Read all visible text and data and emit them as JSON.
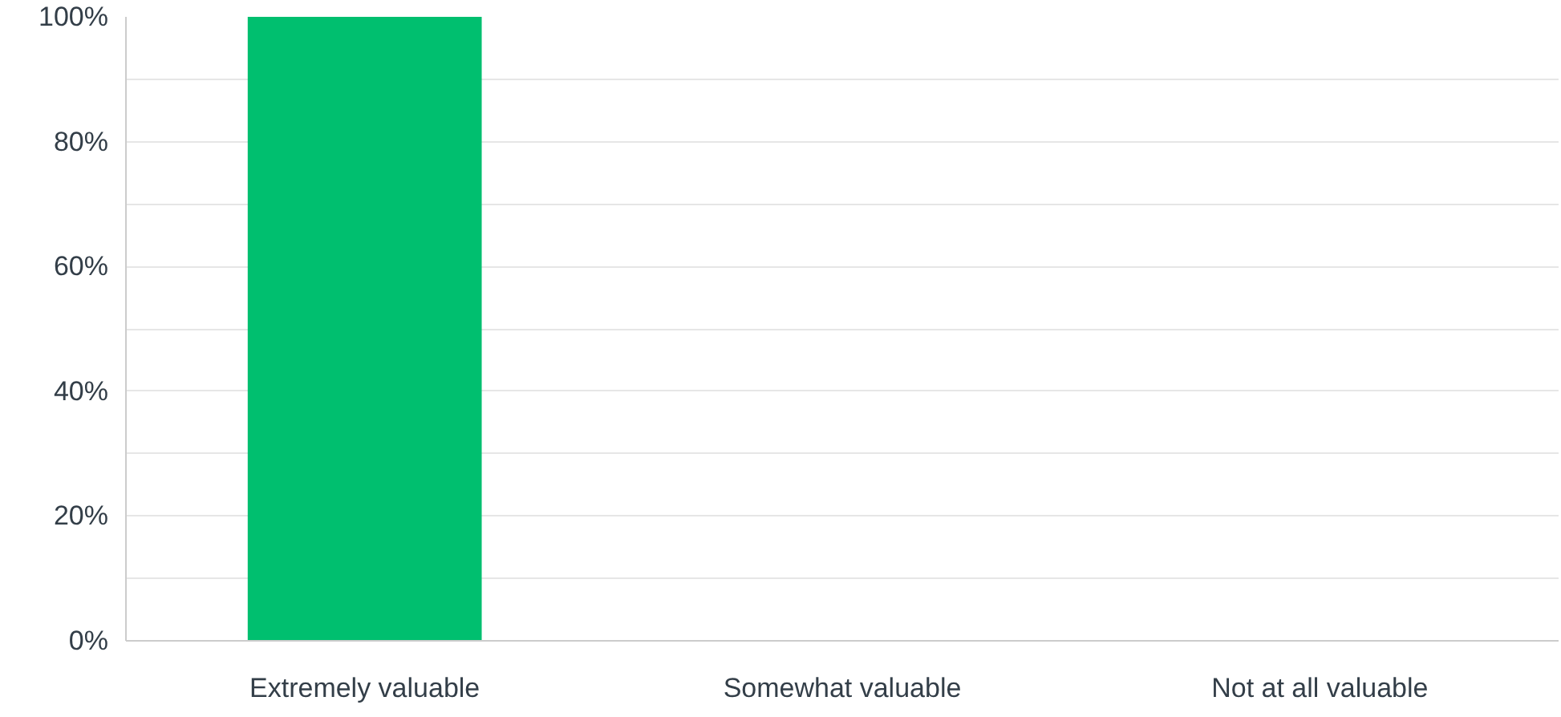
{
  "chart_data": {
    "type": "bar",
    "categories": [
      "Extremely valuable",
      "Somewhat valuable",
      "Not at all valuable"
    ],
    "values": [
      100,
      0,
      0
    ],
    "color": "#00bf6f",
    "ylim": [
      0,
      100
    ],
    "yticks": [
      {
        "value": 0,
        "label": "0%"
      },
      {
        "value": 10,
        "label": null
      },
      {
        "value": 20,
        "label": "20%"
      },
      {
        "value": 30,
        "label": null
      },
      {
        "value": 40,
        "label": "40%"
      },
      {
        "value": 50,
        "label": null
      },
      {
        "value": 60,
        "label": "60%"
      },
      {
        "value": 70,
        "label": null
      },
      {
        "value": 80,
        "label": "80%"
      },
      {
        "value": 90,
        "label": null
      },
      {
        "value": 100,
        "label": "100%"
      }
    ],
    "grid": "y"
  }
}
